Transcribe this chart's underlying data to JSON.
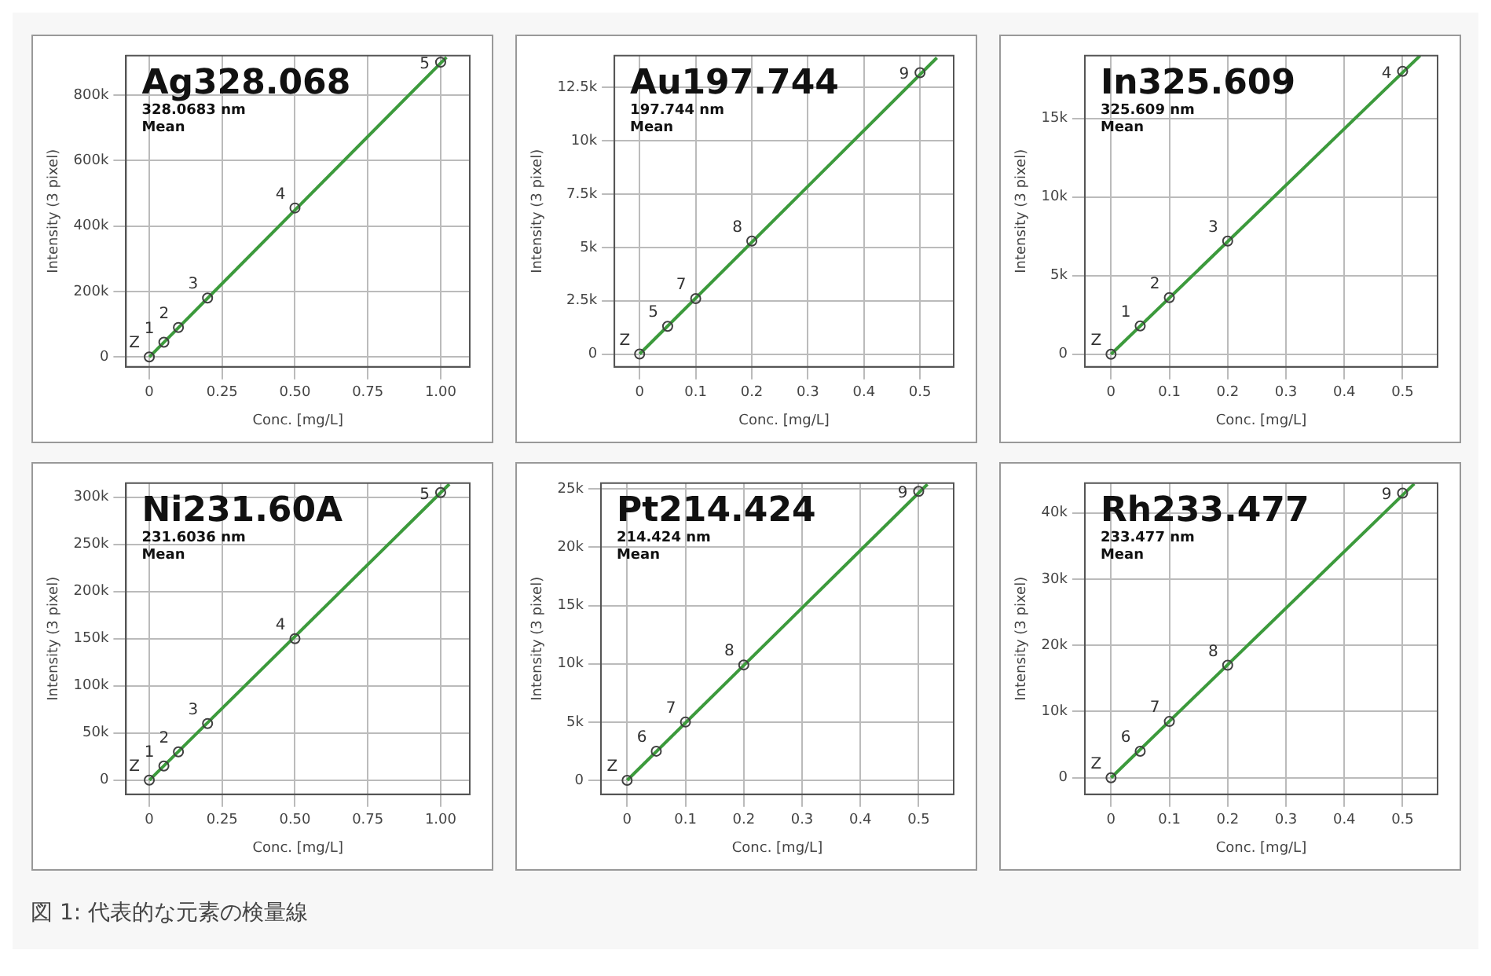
{
  "chart_data": [
    {
      "type": "scatter",
      "title": "Ag328.068",
      "subtitle": "328.0683 nm",
      "annotations": [
        "Mean",
        {
          "text": "Z",
          "x": 0,
          "y": 0
        },
        {
          "text": "1",
          "x": 0.05,
          "y": 45000
        },
        {
          "text": "2",
          "x": 0.1,
          "y": 90000
        },
        {
          "text": "3",
          "x": 0.2,
          "y": 180000
        },
        {
          "text": "4",
          "x": 0.5,
          "y": 455000
        },
        {
          "text": "5",
          "x": 1.0,
          "y": 900000
        }
      ],
      "xlabel": "Conc. [mg/L]",
      "ylabel": "Intensity (3 pixel)",
      "xlim": [
        -0.08,
        1.1
      ],
      "xticks": [
        0,
        {
          "value": 0.25,
          "label": "0.25"
        },
        {
          "value": 0.5,
          "label": "0.50"
        },
        {
          "value": 0.75,
          "label": "0.75"
        },
        {
          "value": 1,
          "label": "1.00"
        }
      ],
      "ylim": [
        -30000,
        920000
      ],
      "yticks": [
        {
          "value": 0,
          "label": "0"
        },
        {
          "value": 200000,
          "label": "200k"
        },
        {
          "value": 400000,
          "label": "400k"
        },
        {
          "value": 600000,
          "label": "600k"
        },
        {
          "value": 800000,
          "label": "800k"
        }
      ],
      "grid": true,
      "legend": false,
      "line_style": "solid",
      "series": [
        {
          "type": "scatter",
          "color": "#404040",
          "marker": "circle",
          "x": [
            0,
            0.05,
            0.1,
            0.2,
            0.5,
            1.0
          ],
          "values": [
            0,
            45000,
            90000,
            180000,
            455000,
            900000
          ]
        },
        {
          "type": "line",
          "color": "#3c9a3c",
          "marker": "none",
          "x": [
            0,
            1.02
          ],
          "values": [
            0,
            915000
          ]
        }
      ]
    },
    {
      "type": "scatter",
      "title": "Au197.744",
      "subtitle": "197.744 nm",
      "annotations": [
        "Mean",
        {
          "text": "Z",
          "x": 0,
          "y": 0
        },
        {
          "text": "5",
          "x": 0.05,
          "y": 1300
        },
        {
          "text": "7",
          "x": 0.1,
          "y": 2600
        },
        {
          "text": "8",
          "x": 0.2,
          "y": 5300
        },
        {
          "text": "9",
          "x": 0.5,
          "y": 13200
        }
      ],
      "xlabel": "Conc. [mg/L]",
      "ylabel": "Intensity (3 pixel)",
      "xlim": [
        -0.045,
        0.56
      ],
      "xticks": [
        0,
        0.1,
        0.2,
        0.3,
        0.4,
        0.5
      ],
      "ylim": [
        -600,
        14000
      ],
      "yticks": [
        {
          "value": 0,
          "label": "0"
        },
        {
          "value": 2500,
          "label": "2.5k"
        },
        {
          "value": 5000,
          "label": "5k"
        },
        {
          "value": 7500,
          "label": "7.5k"
        },
        {
          "value": 10000,
          "label": "10k"
        },
        {
          "value": 12500,
          "label": "12.5k"
        }
      ],
      "grid": true,
      "legend": false,
      "line_style": "solid",
      "series": [
        {
          "type": "scatter",
          "color": "#404040",
          "marker": "circle",
          "x": [
            0,
            0.05,
            0.1,
            0.2,
            0.5
          ],
          "values": [
            0,
            1300,
            2600,
            5300,
            13200
          ]
        },
        {
          "type": "line",
          "color": "#3c9a3c",
          "marker": "none",
          "x": [
            0,
            0.53
          ],
          "values": [
            0,
            13900
          ]
        }
      ]
    },
    {
      "type": "scatter",
      "title": "In325.609",
      "subtitle": "325.609 nm",
      "annotations": [
        "Mean",
        {
          "text": "Z",
          "x": 0,
          "y": 0
        },
        {
          "text": "1",
          "x": 0.05,
          "y": 1800
        },
        {
          "text": "2",
          "x": 0.1,
          "y": 3600
        },
        {
          "text": "3",
          "x": 0.2,
          "y": 7200
        },
        {
          "text": "4",
          "x": 0.5,
          "y": 18000
        }
      ],
      "xlabel": "Conc. [mg/L]",
      "ylabel": "Intensity (3 pixel)",
      "xlim": [
        -0.045,
        0.56
      ],
      "xticks": [
        0,
        0.1,
        0.2,
        0.3,
        0.4,
        0.5
      ],
      "ylim": [
        -800,
        19000
      ],
      "yticks": [
        {
          "value": 0,
          "label": "0"
        },
        {
          "value": 5000,
          "label": "5k"
        },
        {
          "value": 10000,
          "label": "10k"
        },
        {
          "value": 15000,
          "label": "15k"
        }
      ],
      "grid": true,
      "legend": false,
      "line_style": "solid",
      "series": [
        {
          "type": "scatter",
          "color": "#404040",
          "marker": "circle",
          "x": [
            0,
            0.05,
            0.1,
            0.2,
            0.5
          ],
          "values": [
            0,
            1800,
            3600,
            7200,
            18000
          ]
        },
        {
          "type": "line",
          "color": "#3c9a3c",
          "marker": "none",
          "x": [
            0,
            0.53
          ],
          "values": [
            0,
            19000
          ]
        }
      ]
    },
    {
      "type": "scatter",
      "title": "Ni231.60A",
      "subtitle": "231.6036 nm",
      "annotations": [
        "Mean",
        {
          "text": "Z",
          "x": 0,
          "y": 0
        },
        {
          "text": "1",
          "x": 0.05,
          "y": 15000
        },
        {
          "text": "2",
          "x": 0.1,
          "y": 30000
        },
        {
          "text": "3",
          "x": 0.2,
          "y": 60000
        },
        {
          "text": "4",
          "x": 0.5,
          "y": 150000
        },
        {
          "text": "5",
          "x": 1.0,
          "y": 305000
        }
      ],
      "xlabel": "Conc. [mg/L]",
      "ylabel": "Intensity (3 pixel)",
      "xlim": [
        -0.08,
        1.1
      ],
      "xticks": [
        0,
        {
          "value": 0.25,
          "label": "0.25"
        },
        {
          "value": 0.5,
          "label": "0.50"
        },
        {
          "value": 0.75,
          "label": "0.75"
        },
        {
          "value": 1,
          "label": "1.00"
        }
      ],
      "ylim": [
        -15000,
        315000
      ],
      "yticks": [
        {
          "value": 0,
          "label": "0"
        },
        {
          "value": 50000,
          "label": "50k"
        },
        {
          "value": 100000,
          "label": "100k"
        },
        {
          "value": 150000,
          "label": "150k"
        },
        {
          "value": 200000,
          "label": "200k"
        },
        {
          "value": 250000,
          "label": "250k"
        },
        {
          "value": 300000,
          "label": "300k"
        }
      ],
      "grid": true,
      "legend": false,
      "line_style": "solid",
      "series": [
        {
          "type": "scatter",
          "color": "#404040",
          "marker": "circle",
          "x": [
            0,
            0.05,
            0.1,
            0.2,
            0.5,
            1.0
          ],
          "values": [
            0,
            15000,
            30000,
            60000,
            150000,
            305000
          ]
        },
        {
          "type": "line",
          "color": "#3c9a3c",
          "marker": "none",
          "x": [
            0,
            1.03
          ],
          "values": [
            0,
            314000
          ]
        }
      ]
    },
    {
      "type": "scatter",
      "title": "Pt214.424",
      "subtitle": "214.424 nm",
      "annotations": [
        "Mean",
        {
          "text": "Z",
          "x": 0,
          "y": 0
        },
        {
          "text": "6",
          "x": 0.05,
          "y": 2500
        },
        {
          "text": "7",
          "x": 0.1,
          "y": 5000
        },
        {
          "text": "8",
          "x": 0.2,
          "y": 9900
        },
        {
          "text": "9",
          "x": 0.5,
          "y": 24800
        }
      ],
      "xlabel": "Conc. [mg/L]",
      "ylabel": "Intensity (3 pixel)",
      "xlim": [
        -0.045,
        0.56
      ],
      "xticks": [
        0,
        0.1,
        0.2,
        0.3,
        0.4,
        0.5
      ],
      "ylim": [
        -1200,
        25500
      ],
      "yticks": [
        {
          "value": 0,
          "label": "0"
        },
        {
          "value": 5000,
          "label": "5k"
        },
        {
          "value": 10000,
          "label": "10k"
        },
        {
          "value": 15000,
          "label": "15k"
        },
        {
          "value": 20000,
          "label": "20k"
        },
        {
          "value": 25000,
          "label": "25k"
        }
      ],
      "grid": true,
      "legend": false,
      "line_style": "solid",
      "series": [
        {
          "type": "scatter",
          "color": "#404040",
          "marker": "circle",
          "x": [
            0,
            0.05,
            0.1,
            0.2,
            0.5
          ],
          "values": [
            0,
            2500,
            5000,
            9900,
            24800
          ]
        },
        {
          "type": "line",
          "color": "#3c9a3c",
          "marker": "none",
          "x": [
            0,
            0.515
          ],
          "values": [
            0,
            25400
          ]
        }
      ]
    },
    {
      "type": "scatter",
      "title": "Rh233.477",
      "subtitle": "233.477 nm",
      "annotations": [
        "Mean",
        {
          "text": "Z",
          "x": 0,
          "y": 0
        },
        {
          "text": "6",
          "x": 0.05,
          "y": 4000
        },
        {
          "text": "7",
          "x": 0.1,
          "y": 8500
        },
        {
          "text": "8",
          "x": 0.2,
          "y": 17000
        },
        {
          "text": "9",
          "x": 0.5,
          "y": 43000
        }
      ],
      "xlabel": "Conc. [mg/L]",
      "ylabel": "Intensity (3 pixel)",
      "xlim": [
        -0.045,
        0.56
      ],
      "xticks": [
        0,
        0.1,
        0.2,
        0.3,
        0.4,
        0.5
      ],
      "ylim": [
        -2500,
        44500
      ],
      "yticks": [
        {
          "value": 0,
          "label": "0"
        },
        {
          "value": 10000,
          "label": "10k"
        },
        {
          "value": 20000,
          "label": "20k"
        },
        {
          "value": 30000,
          "label": "30k"
        },
        {
          "value": 40000,
          "label": "40k"
        }
      ],
      "grid": true,
      "legend": false,
      "line_style": "solid",
      "series": [
        {
          "type": "scatter",
          "color": "#404040",
          "marker": "circle",
          "x": [
            0,
            0.05,
            0.1,
            0.2,
            0.5
          ],
          "values": [
            0,
            4000,
            8500,
            17000,
            43000
          ]
        },
        {
          "type": "line",
          "color": "#3c9a3c",
          "marker": "none",
          "x": [
            0,
            0.52
          ],
          "values": [
            0,
            44400
          ]
        }
      ]
    },
    {
      "type": "other",
      "annotations": [
        "図 1: 代表的な元素の検量線"
      ]
    }
  ]
}
